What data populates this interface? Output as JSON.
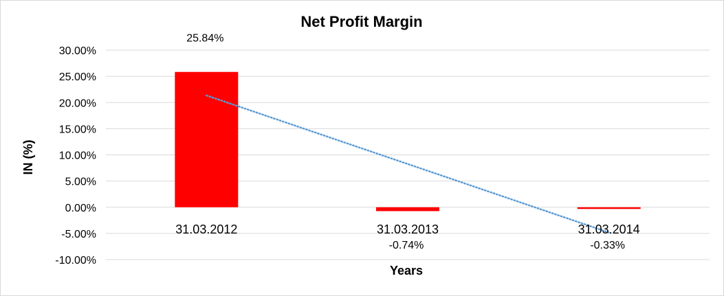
{
  "chart_data": {
    "type": "bar",
    "title": "Net Profit Margin",
    "xlabel": "Years",
    "ylabel": "IN (%)",
    "categories": [
      "31.03.2012",
      "31.03.2013",
      "31.03.2014"
    ],
    "series": [
      {
        "values": [
          25.84,
          -0.74,
          -0.33
        ],
        "color": "#ff0000"
      }
    ],
    "data_labels": [
      "25.84%",
      "-0.74%",
      "-0.33%"
    ],
    "ylim": [
      -10,
      30
    ],
    "yticks": [
      30,
      25,
      20,
      15,
      10,
      5,
      0,
      -5,
      -10
    ],
    "ytick_labels": [
      "30.00%",
      "25.00%",
      "20.00%",
      "15.00%",
      "10.00%",
      "5.00%",
      "0.00%",
      "-5.00%",
      "-10.00%"
    ],
    "grid": true,
    "legend": "none",
    "trendline": {
      "type": "linear",
      "style": "dotted",
      "color": "#5b9bd5"
    }
  }
}
